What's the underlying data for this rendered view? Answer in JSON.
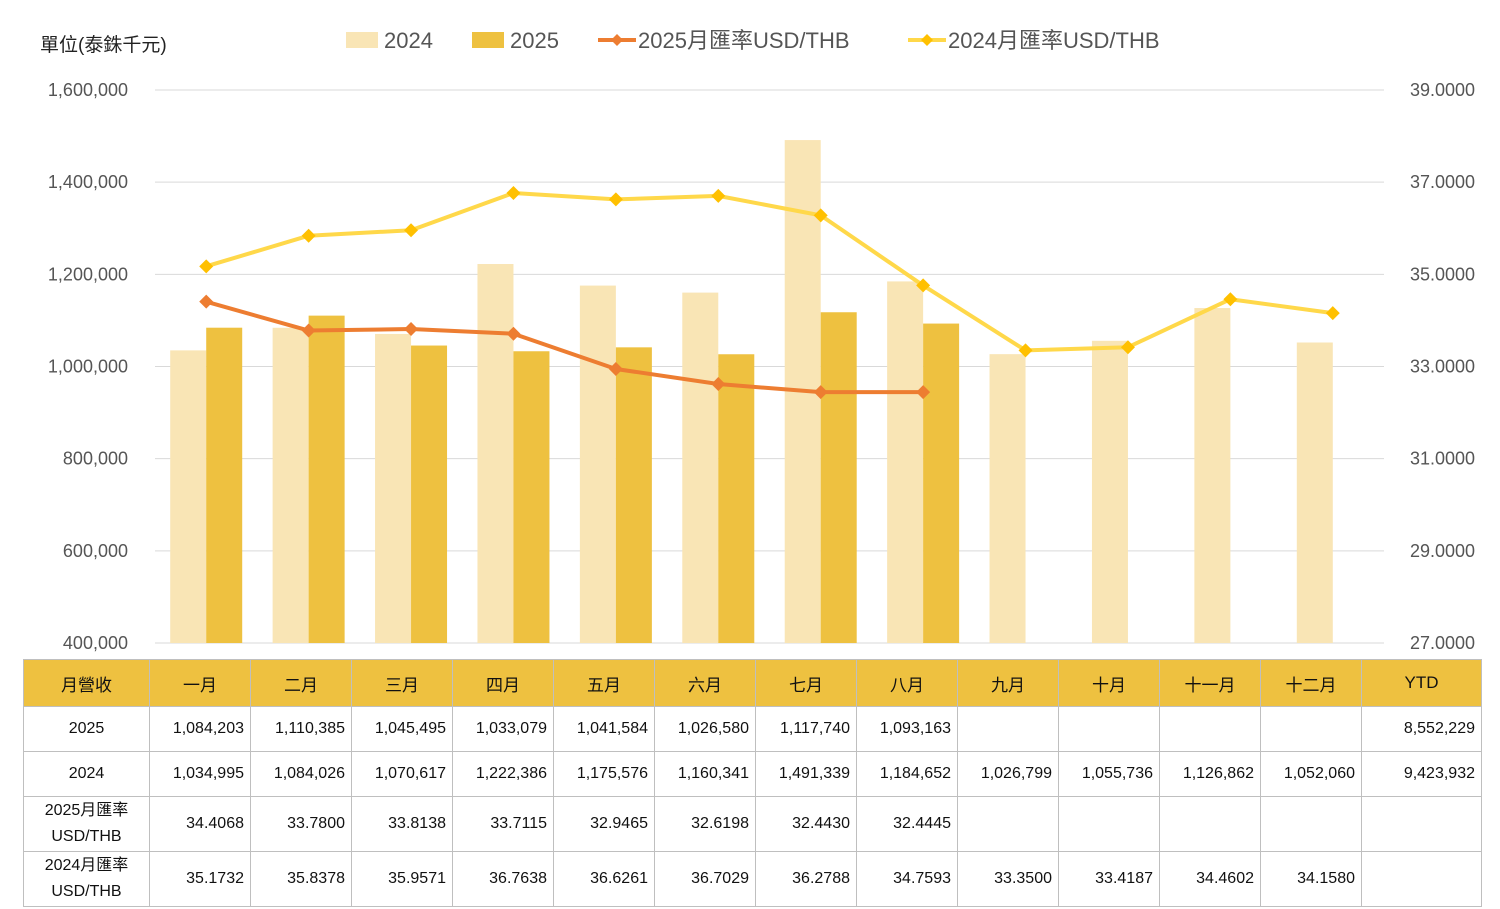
{
  "unit_label": "單位(泰銖千元)",
  "chart_data": {
    "type": "bar",
    "categories": [
      "一月",
      "二月",
      "三月",
      "四月",
      "五月",
      "六月",
      "七月",
      "八月",
      "九月",
      "十月",
      "十一月",
      "十二月"
    ],
    "series": [
      {
        "name": "2024",
        "type": "bar",
        "axis": "left",
        "color": "#f9e5b5",
        "values": [
          1034995,
          1084026,
          1070617,
          1222386,
          1175576,
          1160341,
          1491339,
          1184652,
          1026799,
          1055736,
          1126862,
          1052060
        ]
      },
      {
        "name": "2025",
        "type": "bar",
        "axis": "left",
        "color": "#eec140",
        "values": [
          1084203,
          1110385,
          1045495,
          1033079,
          1041584,
          1026580,
          1117740,
          1093163,
          null,
          null,
          null,
          null
        ]
      },
      {
        "name": "2025月匯率USD/THB",
        "type": "line",
        "axis": "right",
        "color": "#ed7d31",
        "values": [
          34.4068,
          33.78,
          33.8138,
          33.7115,
          32.9465,
          32.6198,
          32.443,
          32.4445,
          null,
          null,
          null,
          null
        ]
      },
      {
        "name": "2024月匯率USD/THB",
        "type": "line",
        "axis": "right",
        "color": "#ffd84a",
        "marker_color": "#ffc000",
        "values": [
          35.1732,
          35.8378,
          35.9571,
          36.7638,
          36.6261,
          36.7029,
          36.2788,
          34.7593,
          33.35,
          33.4187,
          34.4602,
          34.158
        ]
      }
    ],
    "left_axis": {
      "min": 400000,
      "max": 1600000,
      "step": 200000,
      "tick_labels": [
        "400,000",
        "600,000",
        "800,000",
        "1,000,000",
        "1,200,000",
        "1,400,000",
        "1,600,000"
      ]
    },
    "right_axis": {
      "min": 27,
      "max": 39,
      "step": 2,
      "tick_labels": [
        "27.0000",
        "29.0000",
        "31.0000",
        "33.0000",
        "35.0000",
        "37.0000",
        "39.0000"
      ]
    },
    "grid": true,
    "legend_position": "top"
  },
  "table": {
    "header": [
      "月營收",
      "一月",
      "二月",
      "三月",
      "四月",
      "五月",
      "六月",
      "七月",
      "八月",
      "九月",
      "十月",
      "十一月",
      "十二月",
      "YTD"
    ],
    "rows": [
      {
        "label": [
          "2025"
        ],
        "cells": [
          "1,084,203",
          "1,110,385",
          "1,045,495",
          "1,033,079",
          "1,041,584",
          "1,026,580",
          "1,117,740",
          "1,093,163",
          "",
          "",
          "",
          "",
          "8,552,229"
        ]
      },
      {
        "label": [
          "2024"
        ],
        "cells": [
          "1,034,995",
          "1,084,026",
          "1,070,617",
          "1,222,386",
          "1,175,576",
          "1,160,341",
          "1,491,339",
          "1,184,652",
          "1,026,799",
          "1,055,736",
          "1,126,862",
          "1,052,060",
          "9,423,932"
        ]
      },
      {
        "label": [
          "2025月匯率",
          "USD/THB"
        ],
        "cells": [
          "34.4068",
          "33.7800",
          "33.8138",
          "33.7115",
          "32.9465",
          "32.6198",
          "32.4430",
          "32.4445",
          "",
          "",
          "",
          "",
          ""
        ]
      },
      {
        "label": [
          "2024月匯率",
          "USD/THB"
        ],
        "cells": [
          "35.1732",
          "35.8378",
          "35.9571",
          "36.7638",
          "36.6261",
          "36.7029",
          "36.2788",
          "34.7593",
          "33.3500",
          "33.4187",
          "34.4602",
          "34.1580",
          ""
        ]
      }
    ]
  }
}
